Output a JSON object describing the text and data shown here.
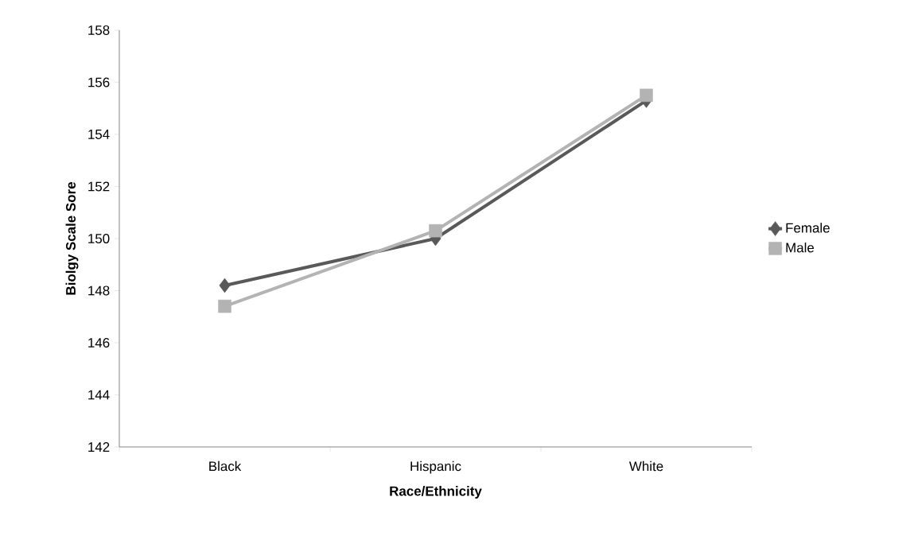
{
  "chart_data": {
    "type": "line",
    "xlabel": "Race/Ethnicity",
    "ylabel": "Biolgy Scale Sore",
    "categories": [
      "Black",
      "Hispanic",
      "White"
    ],
    "series": [
      {
        "name": "Female",
        "color": "#595959",
        "marker": "diamond",
        "values": [
          148.2,
          150.0,
          155.3
        ]
      },
      {
        "name": "Male",
        "color": "#b3b3b3",
        "marker": "square",
        "values": [
          147.4,
          150.3,
          155.5
        ]
      }
    ],
    "ylim": [
      142,
      158
    ],
    "yticks": [
      142,
      144,
      146,
      148,
      150,
      152,
      154,
      156,
      158
    ],
    "grid": false,
    "legend": "right",
    "line_style": "solid"
  }
}
